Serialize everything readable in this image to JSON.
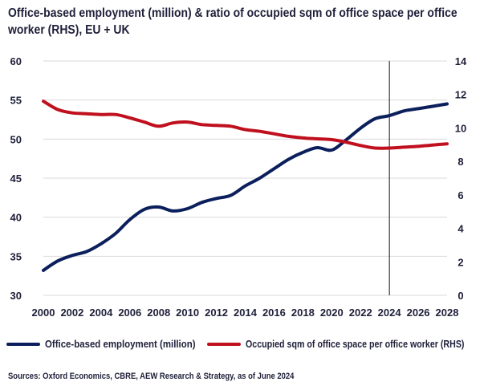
{
  "chart_data": {
    "type": "line",
    "title": "Office-based employment (million) & ratio of occupied sqm of office space per office worker (RHS), EU + UK",
    "x_ticks": [
      "2000",
      "2002",
      "2004",
      "2006",
      "2008",
      "2010",
      "2012",
      "2014",
      "2016",
      "2018",
      "2020",
      "2022",
      "2024",
      "2026",
      "2028"
    ],
    "xlim": [
      2000,
      2028
    ],
    "ylim_left": [
      30,
      60
    ],
    "y_ticks_left": [
      "30",
      "35",
      "40",
      "45",
      "50",
      "55",
      "60"
    ],
    "ylim_right": [
      0,
      14
    ],
    "y_ticks_right": [
      "0",
      "2",
      "4",
      "6",
      "8",
      "10",
      "12",
      "14"
    ],
    "vertical_line_x": 2024,
    "grid": true,
    "legend_position": "bottom",
    "series": [
      {
        "name": "Office-based employment (million)",
        "axis": "left",
        "color": "#0b1f5c",
        "x": [
          2000,
          2001,
          2002,
          2003,
          2004,
          2005,
          2006,
          2007,
          2008,
          2009,
          2010,
          2011,
          2012,
          2013,
          2014,
          2015,
          2016,
          2017,
          2018,
          2019,
          2020,
          2021,
          2022,
          2023,
          2024,
          2025,
          2026,
          2027,
          2028
        ],
        "values": [
          33.2,
          34.4,
          35.1,
          35.6,
          36.6,
          37.9,
          39.7,
          41.0,
          41.3,
          40.8,
          41.1,
          41.9,
          42.4,
          42.8,
          44.0,
          45.0,
          46.2,
          47.4,
          48.3,
          48.9,
          48.6,
          49.9,
          51.4,
          52.6,
          53.0,
          53.6,
          53.9,
          54.2,
          54.5
        ]
      },
      {
        "name": "Occupied sqm of office space per office worker (RHS)",
        "axis": "right",
        "color": "#c0101e",
        "x": [
          2000,
          2001,
          2002,
          2003,
          2004,
          2005,
          2006,
          2007,
          2008,
          2009,
          2010,
          2011,
          2012,
          2013,
          2014,
          2015,
          2016,
          2017,
          2018,
          2019,
          2020,
          2021,
          2022,
          2023,
          2024,
          2025,
          2026,
          2027,
          2028
        ],
        "values": [
          11.6,
          11.1,
          10.9,
          10.85,
          10.8,
          10.8,
          10.6,
          10.35,
          10.1,
          10.3,
          10.35,
          10.2,
          10.15,
          10.1,
          9.9,
          9.8,
          9.65,
          9.5,
          9.4,
          9.35,
          9.3,
          9.15,
          8.95,
          8.8,
          8.8,
          8.85,
          8.9,
          8.98,
          9.05
        ]
      }
    ]
  },
  "source": "Sources: Oxford Economics, CBRE, AEW Research & Strategy, as of June 2024"
}
